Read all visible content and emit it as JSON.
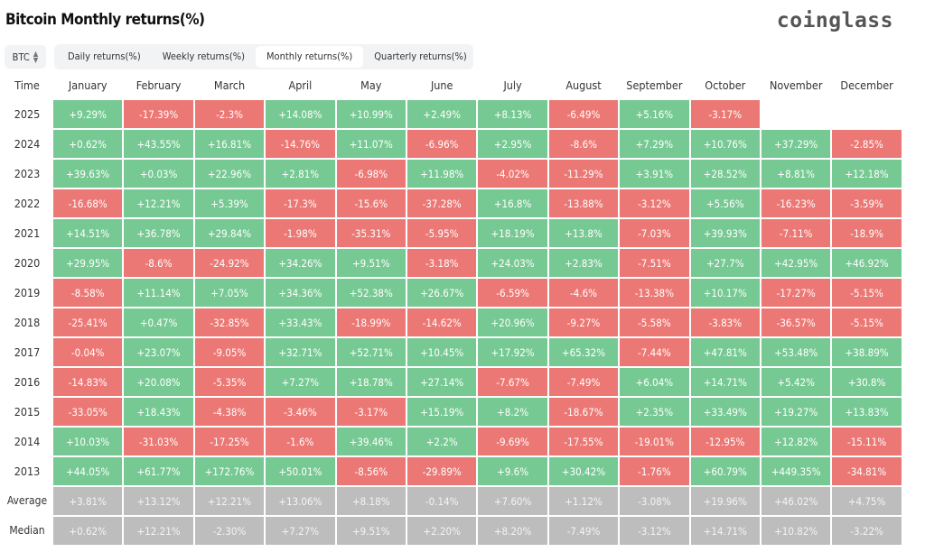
{
  "title": "Bitcoin Monthly returns(%)",
  "logo": "coinglass",
  "asset_select": {
    "value": "BTC"
  },
  "tabs": [
    {
      "label": "Daily returns(%)",
      "active": false
    },
    {
      "label": "Weekly returns(%)",
      "active": false
    },
    {
      "label": "Monthly returns(%)",
      "active": true
    },
    {
      "label": "Quarterly returns(%)",
      "active": false
    }
  ],
  "colors": {
    "positive": "#77c993",
    "negative": "#ec7875",
    "summary": "#bdbdbd"
  },
  "chart_data": {
    "type": "heatmap",
    "corner_label": "Time",
    "columns": [
      "January",
      "February",
      "March",
      "April",
      "May",
      "June",
      "July",
      "August",
      "September",
      "October",
      "November",
      "December"
    ],
    "rows": [
      {
        "label": "2025",
        "values": [
          "+9.29%",
          "-17.39%",
          "-2.3%",
          "+14.08%",
          "+10.99%",
          "+2.49%",
          "+8.13%",
          "-6.49%",
          "+5.16%",
          "-3.17%"
        ]
      },
      {
        "label": "2024",
        "values": [
          "+0.62%",
          "+43.55%",
          "+16.81%",
          "-14.76%",
          "+11.07%",
          "-6.96%",
          "+2.95%",
          "-8.6%",
          "+7.29%",
          "+10.76%",
          "+37.29%",
          "-2.85%"
        ]
      },
      {
        "label": "2023",
        "values": [
          "+39.63%",
          "+0.03%",
          "+22.96%",
          "+2.81%",
          "-6.98%",
          "+11.98%",
          "-4.02%",
          "-11.29%",
          "+3.91%",
          "+28.52%",
          "+8.81%",
          "+12.18%"
        ]
      },
      {
        "label": "2022",
        "values": [
          "-16.68%",
          "+12.21%",
          "+5.39%",
          "-17.3%",
          "-15.6%",
          "-37.28%",
          "+16.8%",
          "-13.88%",
          "-3.12%",
          "+5.56%",
          "-16.23%",
          "-3.59%"
        ]
      },
      {
        "label": "2021",
        "values": [
          "+14.51%",
          "+36.78%",
          "+29.84%",
          "-1.98%",
          "-35.31%",
          "-5.95%",
          "+18.19%",
          "+13.8%",
          "-7.03%",
          "+39.93%",
          "-7.11%",
          "-18.9%"
        ]
      },
      {
        "label": "2020",
        "values": [
          "+29.95%",
          "-8.6%",
          "-24.92%",
          "+34.26%",
          "+9.51%",
          "-3.18%",
          "+24.03%",
          "+2.83%",
          "-7.51%",
          "+27.7%",
          "+42.95%",
          "+46.92%"
        ]
      },
      {
        "label": "2019",
        "values": [
          "-8.58%",
          "+11.14%",
          "+7.05%",
          "+34.36%",
          "+52.38%",
          "+26.67%",
          "-6.59%",
          "-4.6%",
          "-13.38%",
          "+10.17%",
          "-17.27%",
          "-5.15%"
        ]
      },
      {
        "label": "2018",
        "values": [
          "-25.41%",
          "+0.47%",
          "-32.85%",
          "+33.43%",
          "-18.99%",
          "-14.62%",
          "+20.96%",
          "-9.27%",
          "-5.58%",
          "-3.83%",
          "-36.57%",
          "-5.15%"
        ]
      },
      {
        "label": "2017",
        "values": [
          "-0.04%",
          "+23.07%",
          "-9.05%",
          "+32.71%",
          "+52.71%",
          "+10.45%",
          "+17.92%",
          "+65.32%",
          "-7.44%",
          "+47.81%",
          "+53.48%",
          "+38.89%"
        ]
      },
      {
        "label": "2016",
        "values": [
          "-14.83%",
          "+20.08%",
          "-5.35%",
          "+7.27%",
          "+18.78%",
          "+27.14%",
          "-7.67%",
          "-7.49%",
          "+6.04%",
          "+14.71%",
          "+5.42%",
          "+30.8%"
        ]
      },
      {
        "label": "2015",
        "values": [
          "-33.05%",
          "+18.43%",
          "-4.38%",
          "-3.46%",
          "-3.17%",
          "+15.19%",
          "+8.2%",
          "-18.67%",
          "+2.35%",
          "+33.49%",
          "+19.27%",
          "+13.83%"
        ]
      },
      {
        "label": "2014",
        "values": [
          "+10.03%",
          "-31.03%",
          "-17.25%",
          "-1.6%",
          "+39.46%",
          "+2.2%",
          "-9.69%",
          "-17.55%",
          "-19.01%",
          "-12.95%",
          "+12.82%",
          "-15.11%"
        ]
      },
      {
        "label": "2013",
        "values": [
          "+44.05%",
          "+61.77%",
          "+172.76%",
          "+50.01%",
          "-8.56%",
          "-29.89%",
          "+9.6%",
          "+30.42%",
          "-1.76%",
          "+60.79%",
          "+449.35%",
          "-34.81%"
        ]
      },
      {
        "label": "Average",
        "summary": true,
        "values": [
          "+3.81%",
          "+13.12%",
          "+12.21%",
          "+13.06%",
          "+8.18%",
          "-0.14%",
          "+7.60%",
          "+1.12%",
          "-3.08%",
          "+19.96%",
          "+46.02%",
          "+4.75%"
        ]
      },
      {
        "label": "Median",
        "summary": true,
        "values": [
          "+0.62%",
          "+12.21%",
          "-2.30%",
          "+7.27%",
          "+9.51%",
          "+2.20%",
          "+8.20%",
          "-7.49%",
          "-3.12%",
          "+14.71%",
          "+10.82%",
          "-3.22%"
        ]
      }
    ]
  }
}
